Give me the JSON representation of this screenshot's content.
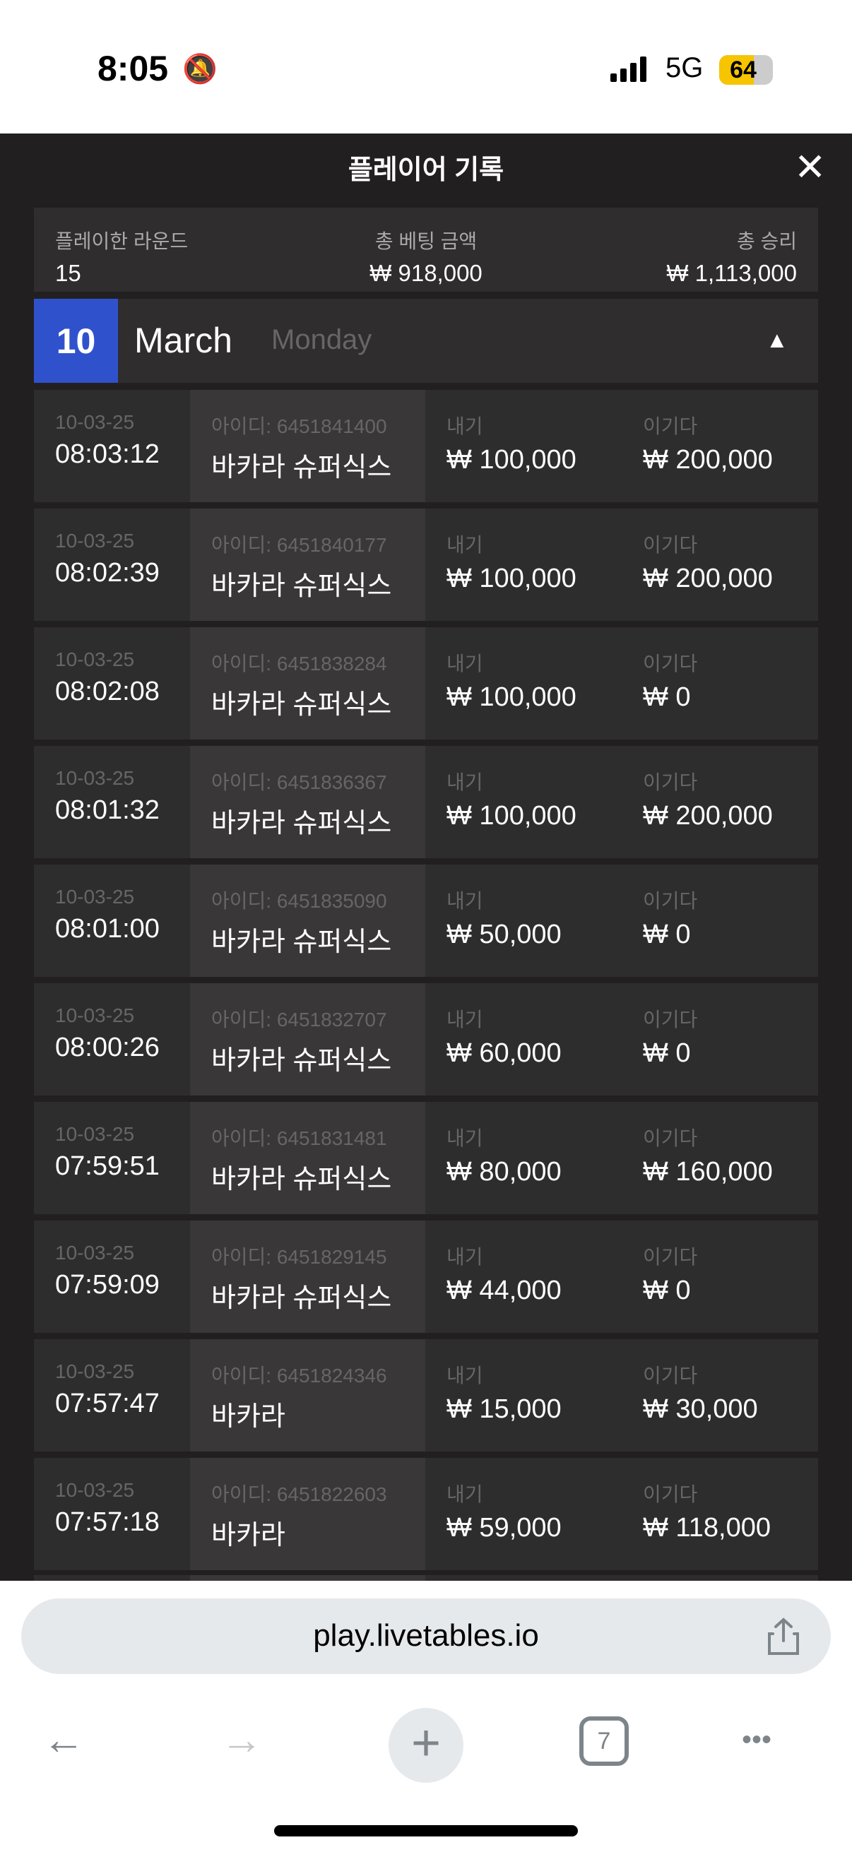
{
  "status_bar": {
    "time": "8:05",
    "network": "5G",
    "battery": "64",
    "battery_level": 64
  },
  "modal": {
    "title": "플레이어 기록",
    "close_label": "✕"
  },
  "summary": {
    "rounds_label": "플레이한 라운드",
    "rounds": "15",
    "bet_label": "총 베팅 금액",
    "bet": "₩ 918,000",
    "win_label": "총 승리",
    "win": "₩ 1,113,000"
  },
  "date_header": {
    "day": "10",
    "month": "March",
    "weekday": "Monday"
  },
  "rows": [
    {
      "date": "10-03-25",
      "time": "08:03:12",
      "id": "아이디: 6451841400",
      "game": "바카라 슈퍼식스",
      "bet_label": "내기",
      "bet": "₩ 100,000",
      "win_label": "이기다",
      "win": "₩ 200,000"
    },
    {
      "date": "10-03-25",
      "time": "08:02:39",
      "id": "아이디: 6451840177",
      "game": "바카라 슈퍼식스",
      "bet_label": "내기",
      "bet": "₩ 100,000",
      "win_label": "이기다",
      "win": "₩ 200,000"
    },
    {
      "date": "10-03-25",
      "time": "08:02:08",
      "id": "아이디: 6451838284",
      "game": "바카라 슈퍼식스",
      "bet_label": "내기",
      "bet": "₩ 100,000",
      "win_label": "이기다",
      "win": "₩ 0"
    },
    {
      "date": "10-03-25",
      "time": "08:01:32",
      "id": "아이디: 6451836367",
      "game": "바카라 슈퍼식스",
      "bet_label": "내기",
      "bet": "₩ 100,000",
      "win_label": "이기다",
      "win": "₩ 200,000"
    },
    {
      "date": "10-03-25",
      "time": "08:01:00",
      "id": "아이디: 6451835090",
      "game": "바카라 슈퍼식스",
      "bet_label": "내기",
      "bet": "₩ 50,000",
      "win_label": "이기다",
      "win": "₩ 0"
    },
    {
      "date": "10-03-25",
      "time": "08:00:26",
      "id": "아이디: 6451832707",
      "game": "바카라 슈퍼식스",
      "bet_label": "내기",
      "bet": "₩ 60,000",
      "win_label": "이기다",
      "win": "₩ 0"
    },
    {
      "date": "10-03-25",
      "time": "07:59:51",
      "id": "아이디: 6451831481",
      "game": "바카라 슈퍼식스",
      "bet_label": "내기",
      "bet": "₩ 80,000",
      "win_label": "이기다",
      "win": "₩ 160,000"
    },
    {
      "date": "10-03-25",
      "time": "07:59:09",
      "id": "아이디: 6451829145",
      "game": "바카라 슈퍼식스",
      "bet_label": "내기",
      "bet": "₩ 44,000",
      "win_label": "이기다",
      "win": "₩ 0"
    },
    {
      "date": "10-03-25",
      "time": "07:57:47",
      "id": "아이디: 6451824346",
      "game": "바카라",
      "bet_label": "내기",
      "bet": "₩ 15,000",
      "win_label": "이기다",
      "win": "₩ 30,000"
    },
    {
      "date": "10-03-25",
      "time": "07:57:18",
      "id": "아이디: 6451822603",
      "game": "바카라",
      "bet_label": "내기",
      "bet": "₩ 59,000",
      "win_label": "이기다",
      "win": "₩ 118,000"
    }
  ],
  "browser": {
    "url": "play.livetables.io",
    "tab_count": "7",
    "back": "←",
    "forward": "→",
    "new_tab": "+",
    "more": "•••"
  },
  "colors": {
    "accent": "#2f52cc",
    "background": "#221f20",
    "row": "#2e2d2e"
  }
}
